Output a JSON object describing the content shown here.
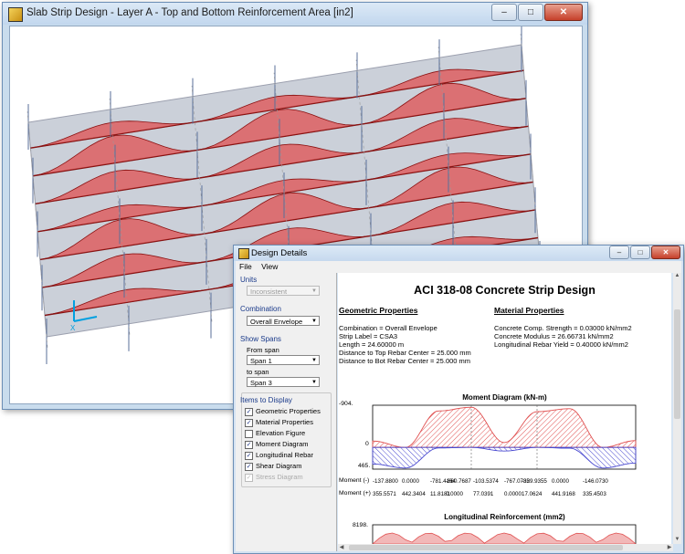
{
  "main_window": {
    "title": "Slab Strip Design - Layer A - Top and Bottom Reinforcement Area [in2]",
    "axis_label": "X"
  },
  "dialog": {
    "title": "Design Details",
    "menu": [
      "File",
      "View"
    ],
    "left_panel": {
      "units_label": "Units",
      "units_value": "Inconsistent",
      "combination_label": "Combination",
      "combination_value": "Overall Envelope",
      "show_spans_label": "Show Spans",
      "from_span_label": "From span",
      "from_span_value": "Span 1",
      "to_span_label": "to span",
      "to_span_value": "Span 3",
      "items_label": "Items to Display",
      "items": [
        {
          "label": "Geometric Properties",
          "checked": true,
          "enabled": true
        },
        {
          "label": "Material Properties",
          "checked": true,
          "enabled": true
        },
        {
          "label": "Elevation Figure",
          "checked": false,
          "enabled": true
        },
        {
          "label": "Moment Diagram",
          "checked": true,
          "enabled": true
        },
        {
          "label": "Longitudinal Rebar",
          "checked": true,
          "enabled": true
        },
        {
          "label": "Shear Diagram",
          "checked": true,
          "enabled": true
        },
        {
          "label": "Stress Diagram",
          "checked": true,
          "enabled": false
        }
      ]
    },
    "report": {
      "title": "ACI 318-08 Concrete Strip Design",
      "geometric_heading": "Geometric Properties",
      "geometric_lines": [
        "Combination = Overall Envelope",
        "Strip Label = CSA3",
        "Length = 24.60000 m",
        "Distance to Top Rebar Center = 25.000 mm",
        "Distance to Bot Rebar Center = 25.000 mm"
      ],
      "material_heading": "Material Properties",
      "material_lines": [
        "Concrete Comp. Strength = 0.03000 kN/mm2",
        "Concrete Modulus = 26.66731 kN/mm2",
        "Longitudinal Rebar Yield = 0.40000 kN/mm2"
      ],
      "moment_chart": {
        "title": "Moment Diagram (kN-m)",
        "y_top_label": "-904.",
        "y_zero_label": "0",
        "y_bottom_label": "465.",
        "row_neg_label": "Moment (-)",
        "row_pos_label": "Moment (+)",
        "row_neg_values": [
          "-137.8800",
          "0.0000",
          "-781.4164",
          "-860.7687",
          "-103.5374",
          "-767.0735",
          "-829.9355",
          "0.0000",
          "-146.0730"
        ],
        "row_pos_values": [
          "355.5571",
          "442.3404",
          "11.8181",
          "0.0000",
          "77.0391",
          "0.0000",
          "17.0624",
          "441.9168",
          "335.4503"
        ]
      },
      "rebar_chart": {
        "title": "Longitudinal Reinforcement (mm2)",
        "y_top_label": "8198."
      }
    }
  },
  "colors": {
    "top_moment": "#e05050",
    "bottom_moment": "#4a4ad0",
    "slab": "#b8bfcc",
    "accent": "#1a3a8a"
  },
  "chart_data": [
    {
      "type": "area",
      "title": "Moment Diagram (kN-m)",
      "ylim": [
        -904,
        465
      ],
      "series": [
        {
          "name": "Moment (-)",
          "values": [
            -137.88,
            0.0,
            -781.4164,
            -860.7687,
            -103.5374,
            -767.0735,
            -829.9355,
            0.0,
            -146.073
          ]
        },
        {
          "name": "Moment (+)",
          "values": [
            355.5571,
            442.3404,
            11.8181,
            0.0,
            77.0391,
            0.0,
            17.0624,
            441.9168,
            335.4503
          ]
        }
      ]
    },
    {
      "type": "bar",
      "title": "Longitudinal Reinforcement (mm2)",
      "ylim": [
        0,
        8198
      ]
    }
  ]
}
